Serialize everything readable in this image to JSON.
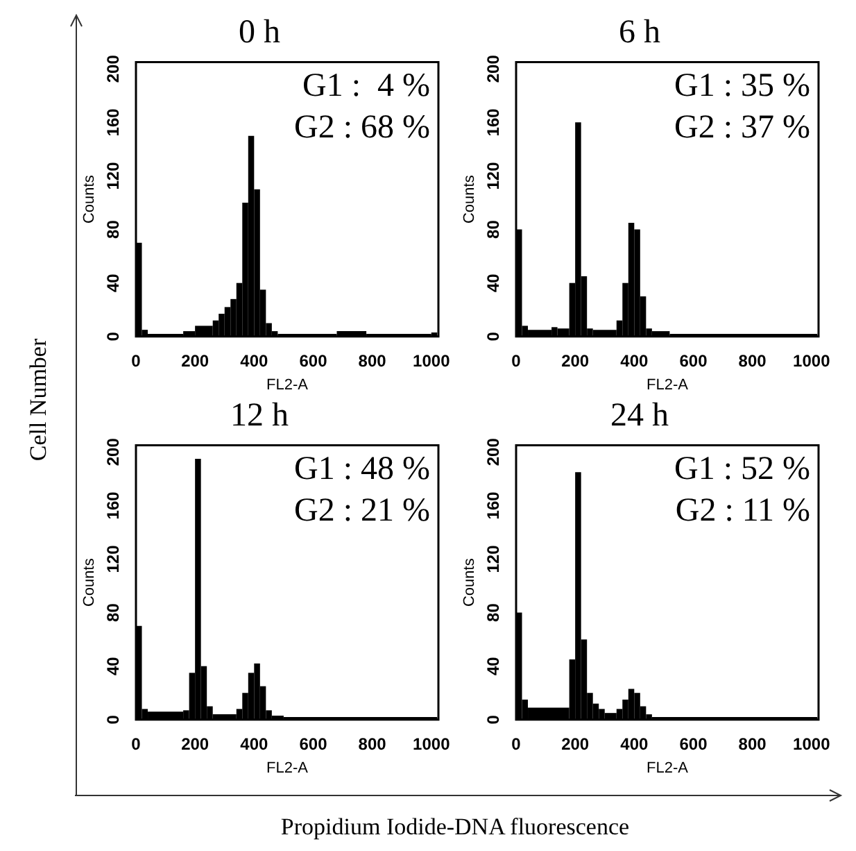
{
  "chart_data": [
    {
      "type": "histogram",
      "title": "0 h",
      "xlabel": "FL2-A",
      "ylabel": "Counts",
      "annotations": [
        "G1 :  4 %",
        "G2 : 68 %"
      ],
      "color": "#000000",
      "xlim": [
        0,
        1024
      ],
      "ylim": [
        0,
        205
      ],
      "xticks": [
        0,
        200,
        400,
        600,
        800,
        1000
      ],
      "yticks": [
        0,
        40,
        80,
        120,
        160,
        200
      ],
      "bins": [
        0,
        20,
        40,
        160,
        200,
        260,
        280,
        300,
        320,
        340,
        360,
        380,
        400,
        420,
        440,
        460,
        480,
        680,
        780,
        1000,
        1020
      ],
      "values": [
        70,
        5,
        2,
        4,
        8,
        12,
        17,
        22,
        28,
        40,
        100,
        150,
        110,
        35,
        10,
        4,
        2,
        4,
        2,
        3
      ]
    },
    {
      "type": "histogram",
      "title": "6 h",
      "xlabel": "FL2-A",
      "ylabel": "Counts",
      "annotations": [
        "G1 : 35 %",
        "G2 : 37 %"
      ],
      "color": "#000000",
      "xlim": [
        0,
        1024
      ],
      "ylim": [
        0,
        205
      ],
      "xticks": [
        0,
        200,
        400,
        600,
        800,
        1000
      ],
      "yticks": [
        0,
        40,
        80,
        120,
        160,
        200
      ],
      "bins": [
        0,
        20,
        40,
        120,
        140,
        180,
        200,
        220,
        240,
        260,
        340,
        360,
        380,
        400,
        420,
        440,
        460,
        520,
        1020
      ],
      "values": [
        80,
        8,
        5,
        7,
        6,
        40,
        160,
        45,
        6,
        5,
        12,
        40,
        85,
        80,
        30,
        6,
        4,
        2
      ]
    },
    {
      "type": "histogram",
      "title": "12 h",
      "xlabel": "FL2-A",
      "ylabel": "Counts",
      "annotations": [
        "G1 : 48 %",
        "G2 : 21 %"
      ],
      "color": "#000000",
      "xlim": [
        0,
        1024
      ],
      "ylim": [
        0,
        205
      ],
      "xticks": [
        0,
        200,
        400,
        600,
        800,
        1000
      ],
      "yticks": [
        0,
        40,
        80,
        120,
        160,
        200
      ],
      "bins": [
        0,
        20,
        40,
        160,
        180,
        200,
        220,
        240,
        260,
        340,
        360,
        380,
        400,
        420,
        440,
        460,
        500,
        1020
      ],
      "values": [
        70,
        8,
        6,
        7,
        35,
        195,
        40,
        10,
        4,
        8,
        20,
        35,
        42,
        25,
        7,
        3,
        2
      ]
    },
    {
      "type": "histogram",
      "title": "24 h",
      "xlabel": "FL2-A",
      "ylabel": "Counts",
      "annotations": [
        "G1 : 52 %",
        "G2 : 11 %"
      ],
      "color": "#000000",
      "xlim": [
        0,
        1024
      ],
      "ylim": [
        0,
        205
      ],
      "xticks": [
        0,
        200,
        400,
        600,
        800,
        1000
      ],
      "yticks": [
        0,
        40,
        80,
        120,
        160,
        200
      ],
      "bins": [
        0,
        20,
        40,
        180,
        200,
        220,
        240,
        260,
        280,
        300,
        340,
        360,
        380,
        400,
        420,
        440,
        460,
        1020
      ],
      "values": [
        80,
        15,
        9,
        45,
        185,
        60,
        20,
        12,
        8,
        5,
        8,
        15,
        23,
        20,
        10,
        4,
        2
      ]
    },
    {
      "type": "other",
      "xlabel": "Propidium Iodide-DNA fluorescence",
      "ylabel": "Cell Number"
    }
  ]
}
